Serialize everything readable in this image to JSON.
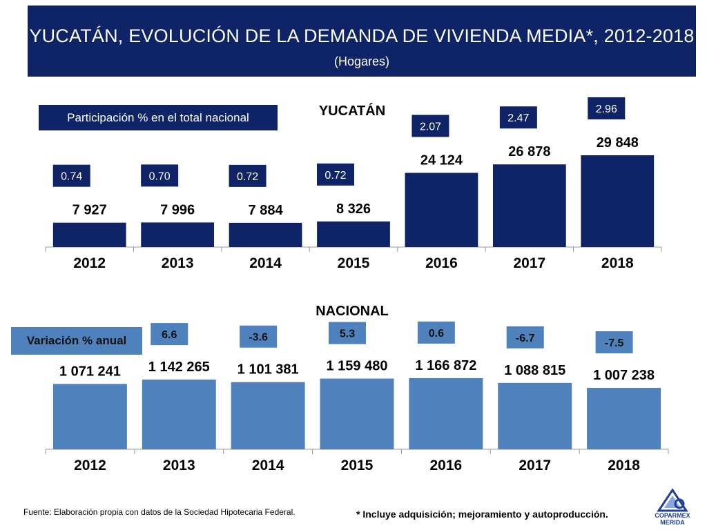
{
  "header": {
    "title": "YUCATÁN, EVOLUCIÓN DE LA DEMANDA DE VIVIENDA MEDIA*, 2012-2018",
    "subtitle": "(Hogares)"
  },
  "legend_boxes": {
    "yucatan": "Participación % en el total nacional",
    "nacional": "Variación % anual"
  },
  "footer": {
    "source": "Fuente: Elaboración propia con datos de la Sociedad Hipotecaria Federal.",
    "note": "* Incluye adquisición; mejoramiento y autoproducción."
  },
  "logo": {
    "line1": "COPARMEX",
    "line2": "MERIDA",
    "icon": "coparmex-logo-icon"
  },
  "colors": {
    "title_bg": "#0f2466",
    "yucatan_bar": "#0f2466",
    "nacional_bar": "#4f81bd",
    "axis": "#999999"
  },
  "chart_data": [
    {
      "type": "bar",
      "title": "YUCATÁN",
      "categories": [
        "2012",
        "2013",
        "2014",
        "2015",
        "2016",
        "2017",
        "2018"
      ],
      "values": [
        7927,
        7996,
        7884,
        8326,
        24124,
        26878,
        29848
      ],
      "value_labels": [
        "7 927",
        "7 996",
        "7 884",
        "8 326",
        "24 124",
        "26 878",
        "29 848"
      ],
      "participation_pct": [
        "0.74",
        "0.70",
        "0.72",
        "0.72",
        "2.07",
        "2.47",
        "2.96"
      ],
      "ylim": [
        0,
        35000
      ],
      "grid": false
    },
    {
      "type": "bar",
      "title": "NACIONAL",
      "categories": [
        "2012",
        "2013",
        "2014",
        "2015",
        "2016",
        "2017",
        "2018"
      ],
      "values": [
        1071241,
        1142265,
        1101381,
        1159480,
        1166872,
        1088815,
        1007238
      ],
      "value_labels": [
        "1 071 241",
        "1 142 265",
        "1 101 381",
        "1 159 480",
        "1 166 872",
        "1 088 815",
        "1 007 238"
      ],
      "annual_change_pct": [
        "",
        "6.6",
        "-3.6",
        "5.3",
        "0.6",
        "-6.7",
        "-7.5"
      ],
      "ylim": [
        0,
        1200000
      ],
      "grid": false
    }
  ]
}
